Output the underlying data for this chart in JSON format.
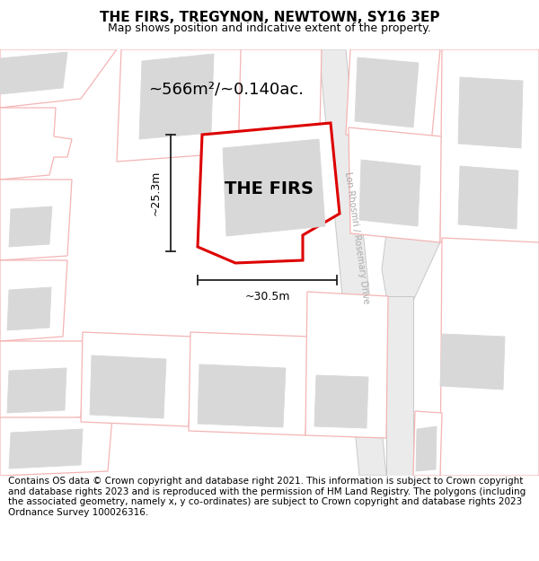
{
  "title": "THE FIRS, TREGYNON, NEWTOWN, SY16 3EP",
  "subtitle": "Map shows position and indicative extent of the property.",
  "footer": "Contains OS data © Crown copyright and database right 2021. This information is subject to Crown copyright and database rights 2023 and is reproduced with the permission of HM Land Registry. The polygons (including the associated geometry, namely x, y co-ordinates) are subject to Crown copyright and database rights 2023 Ordnance Survey 100026316.",
  "property_label": "THE FIRS",
  "area_label": "~566m²/~0.140ac.",
  "width_label": "~30.5m",
  "height_label": "~25.3m",
  "road_label_1": "Lon Rhosmri / Rosemary Drive",
  "bg_color": "#ffffff",
  "map_bg": "#ffffff",
  "parcel_fill": "#ffffff",
  "building_fill": "#d8d8d8",
  "building_edge": "#d8d8d8",
  "parcel_edge": "#f4b4b4",
  "property_fill": "#ffffff",
  "property_edge": "#dd0000",
  "road_fill": "#ebebeb",
  "road_edge": "#c8c8c8",
  "dim_color": "#222222",
  "title_fontsize": 11,
  "subtitle_fontsize": 9,
  "label_fontsize": 14,
  "area_fontsize": 13,
  "dim_fontsize": 9,
  "road_fontsize": 7,
  "footer_fontsize": 7.5
}
